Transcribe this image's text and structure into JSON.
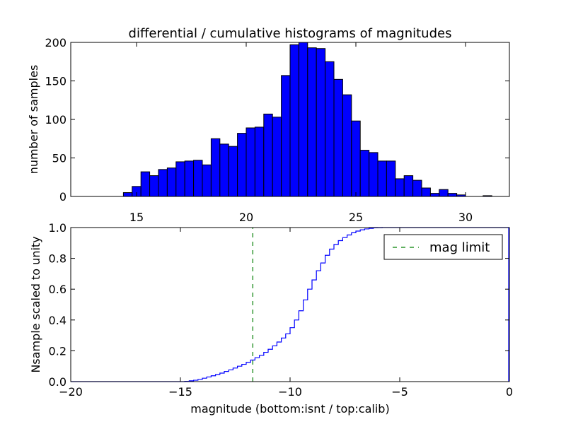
{
  "figure": {
    "title": "differential / cumulative histograms of magnitudes"
  },
  "colors": {
    "bar_fill": "#0000ff",
    "bar_edge": "#000000",
    "cumulative_line": "#0000ff",
    "mag_limit_line": "#008000"
  },
  "chart_data": [
    {
      "type": "bar",
      "title": "differential / cumulative histograms of magnitudes",
      "xlabel": "",
      "ylabel": "number of samples",
      "xlim": [
        12,
        32
      ],
      "ylim": [
        0,
        200
      ],
      "xticks": [
        15,
        20,
        25,
        30
      ],
      "yticks": [
        0,
        50,
        100,
        150,
        200
      ],
      "xtick_position": "top",
      "bin_width": 0.4,
      "bin_starts": [
        14.4,
        14.8,
        15.2,
        15.6,
        16.0,
        16.4,
        16.8,
        17.2,
        17.6,
        18.0,
        18.4,
        18.8,
        19.2,
        19.6,
        20.0,
        20.4,
        20.8,
        21.2,
        21.6,
        22.0,
        22.4,
        22.8,
        23.2,
        23.6,
        24.0,
        24.4,
        24.8,
        25.2,
        25.6,
        26.0,
        26.4,
        26.8,
        27.2,
        27.6,
        28.0,
        28.4,
        28.8,
        29.2,
        29.6,
        30.0,
        30.4,
        30.8,
        31.2
      ],
      "values": [
        5,
        13,
        32,
        27,
        35,
        37,
        45,
        46,
        47,
        41,
        75,
        68,
        65,
        82,
        89,
        90,
        107,
        103,
        157,
        197,
        200,
        193,
        192,
        175,
        152,
        132,
        98,
        60,
        57,
        46,
        46,
        23,
        27,
        21,
        11,
        4,
        9,
        4,
        2,
        0,
        0,
        1,
        0
      ],
      "grid": false
    },
    {
      "type": "line",
      "title": "",
      "xlabel": "magnitude (bottom:isnt / top:calib)",
      "ylabel": "Nsample scaled to unity",
      "xlim": [
        -20,
        0
      ],
      "ylim": [
        0.0,
        1.0
      ],
      "xticks": [
        -20,
        -15,
        -10,
        -5,
        0
      ],
      "xtick_labels": [
        "−20",
        "−15",
        "−10",
        "−5",
        "0"
      ],
      "yticks": [
        0.0,
        0.2,
        0.4,
        0.6,
        0.8,
        1.0
      ],
      "ytick_labels": [
        "0.0",
        "0.2",
        "0.4",
        "0.6",
        "0.8",
        "1.0"
      ],
      "series": [
        {
          "step": true,
          "x": [
            -20.0,
            -14.8,
            -14.6,
            -14.4,
            -14.2,
            -14.0,
            -13.8,
            -13.6,
            -13.4,
            -13.2,
            -13.0,
            -12.8,
            -12.6,
            -12.4,
            -12.2,
            -12.0,
            -11.8,
            -11.6,
            -11.4,
            -11.2,
            -11.0,
            -10.8,
            -10.6,
            -10.4,
            -10.2,
            -10.0,
            -9.8,
            -9.6,
            -9.4,
            -9.2,
            -9.0,
            -8.8,
            -8.6,
            -8.4,
            -8.2,
            -8.0,
            -7.8,
            -7.6,
            -7.4,
            -7.2,
            -7.0,
            -6.8,
            -6.6,
            -6.4,
            -6.2,
            -6.0,
            -5.8,
            -5.6,
            -5.4,
            0.0
          ],
          "y": [
            0.0,
            0.002,
            0.005,
            0.009,
            0.014,
            0.022,
            0.03,
            0.038,
            0.046,
            0.055,
            0.066,
            0.076,
            0.088,
            0.1,
            0.112,
            0.125,
            0.14,
            0.155,
            0.17,
            0.19,
            0.21,
            0.232,
            0.257,
            0.283,
            0.31,
            0.35,
            0.4,
            0.46,
            0.53,
            0.6,
            0.66,
            0.72,
            0.77,
            0.82,
            0.86,
            0.89,
            0.915,
            0.935,
            0.952,
            0.966,
            0.977,
            0.985,
            0.991,
            0.995,
            0.998,
            0.999,
            1.0,
            1.0,
            1.0,
            1.0
          ]
        },
        {
          "name": "mag limit",
          "dashed": true,
          "x": [
            -11.7,
            -11.7
          ],
          "y": [
            0.0,
            1.0
          ]
        }
      ],
      "legend": {
        "position": "top-right",
        "entries": [
          "mag limit"
        ]
      },
      "grid": false
    }
  ]
}
